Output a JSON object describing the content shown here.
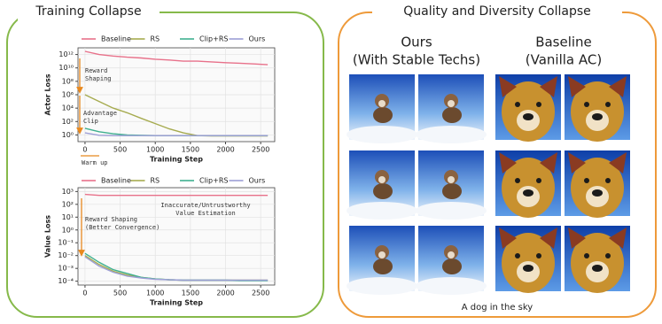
{
  "left_panel": {
    "title": "Training Collapse"
  },
  "chart_data": [
    {
      "type": "line",
      "x_label": "Training Step",
      "y_label": "Actor Loss",
      "log_y": true,
      "grid": true,
      "xlim": [
        -100,
        2700
      ],
      "xticks": [
        0,
        500,
        1000,
        1500,
        2000,
        2500
      ],
      "ylim": [
        0.1,
        10000000000000
      ],
      "yticks": [
        {
          "value": 1,
          "label": "10⁰"
        },
        {
          "value": 100,
          "label": "10²"
        },
        {
          "value": 10000,
          "label": "10⁴"
        },
        {
          "value": 1000000,
          "label": "10⁶"
        },
        {
          "value": 100000000,
          "label": "10⁸"
        },
        {
          "value": 10000000000,
          "label": "10¹⁰"
        },
        {
          "value": 1000000000000,
          "label": "10¹²"
        }
      ],
      "x": [
        0,
        200,
        400,
        600,
        800,
        1000,
        1200,
        1400,
        1600,
        1800,
        2000,
        2200,
        2400,
        2600
      ],
      "series": [
        {
          "name": "Baseline",
          "color": "#e8718a",
          "values": [
            3000000000000,
            1000000000000,
            600000000000,
            400000000000,
            300000000000,
            200000000000,
            150000000000,
            100000000000,
            100000000000,
            80000000000,
            60000000000,
            50000000000,
            40000000000,
            30000000000
          ]
        },
        {
          "name": "RS",
          "color": "#a6ab4f",
          "values": [
            1000000,
            100000,
            10000,
            2000,
            300,
            50,
            8,
            2,
            0.8,
            0.7,
            0.7,
            0.7,
            0.7,
            0.7
          ]
        },
        {
          "name": "Clip+RS",
          "color": "#3fb08f",
          "values": [
            10,
            3,
            1.5,
            1,
            0.9,
            0.8,
            0.8,
            0.8,
            0.8,
            0.8,
            0.8,
            0.8,
            0.8,
            0.8
          ]
        },
        {
          "name": "Ours",
          "color": "#9d9fd6",
          "values": [
            2,
            0.9,
            0.8,
            0.8,
            0.8,
            0.8,
            0.8,
            0.8,
            0.8,
            0.8,
            0.8,
            0.8,
            0.8,
            0.8
          ]
        }
      ],
      "annotations": [
        {
          "lines": [
            "Reward",
            "Shaping"
          ]
        },
        {
          "lines": [
            "Advantage",
            "Clip"
          ]
        },
        {
          "lines": [
            "Warm up"
          ]
        }
      ]
    },
    {
      "type": "line",
      "x_label": "Training Step",
      "y_label": "Value Loss",
      "log_y": true,
      "grid": true,
      "xlim": [
        -100,
        2700
      ],
      "xticks": [
        0,
        500,
        1000,
        1500,
        2000,
        2500
      ],
      "ylim": [
        5e-05,
        2000
      ],
      "yticks": [
        {
          "value": 0.0001,
          "label": "10⁻⁴"
        },
        {
          "value": 0.001,
          "label": "10⁻³"
        },
        {
          "value": 0.01,
          "label": "10⁻²"
        },
        {
          "value": 0.1,
          "label": "10⁻¹"
        },
        {
          "value": 1,
          "label": "10⁰"
        },
        {
          "value": 10,
          "label": "10¹"
        },
        {
          "value": 100,
          "label": "10²"
        },
        {
          "value": 1000,
          "label": "10³"
        }
      ],
      "x": [
        0,
        200,
        400,
        600,
        800,
        1000,
        1200,
        1400,
        1600,
        1800,
        2000,
        2200,
        2400,
        2600
      ],
      "series": [
        {
          "name": "Baseline",
          "color": "#e8718a",
          "values": [
            600,
            500,
            500,
            500,
            500,
            500,
            500,
            500,
            500,
            500,
            500,
            500,
            500,
            500
          ]
        },
        {
          "name": "RS",
          "color": "#a6ab4f",
          "values": [
            0.01,
            0.002,
            0.0006,
            0.0003,
            0.0002,
            0.00015,
            0.00013,
            0.00012,
            0.00012,
            0.00012,
            0.00012,
            0.00012,
            0.00012,
            0.00012
          ]
        },
        {
          "name": "Clip+RS",
          "color": "#3fb08f",
          "values": [
            0.015,
            0.003,
            0.0008,
            0.0004,
            0.0002,
            0.00015,
            0.00013,
            0.00012,
            0.00012,
            0.00012,
            0.00012,
            0.00011,
            0.00011,
            0.00011
          ]
        },
        {
          "name": "Ours",
          "color": "#9d9fd6",
          "values": [
            0.008,
            0.0015,
            0.0005,
            0.00025,
            0.00018,
            0.00014,
            0.00013,
            0.00012,
            0.00012,
            0.00012,
            0.00012,
            0.00012,
            0.00012,
            0.00012
          ]
        }
      ],
      "annotations": [
        {
          "lines": [
            "Inaccurate/Untrustworthy",
            "Value Estimation"
          ]
        },
        {
          "lines": [
            "Reward Shaping",
            "(Better Convergence)"
          ]
        }
      ]
    }
  ],
  "right_panel": {
    "title": "Quality and Diversity Collapse",
    "columns": [
      {
        "lines": [
          "Ours",
          "(With Stable Techs)"
        ]
      },
      {
        "lines": [
          "Baseline",
          "(Vanilla AC)"
        ]
      }
    ],
    "caption": "A dog in the sky"
  }
}
